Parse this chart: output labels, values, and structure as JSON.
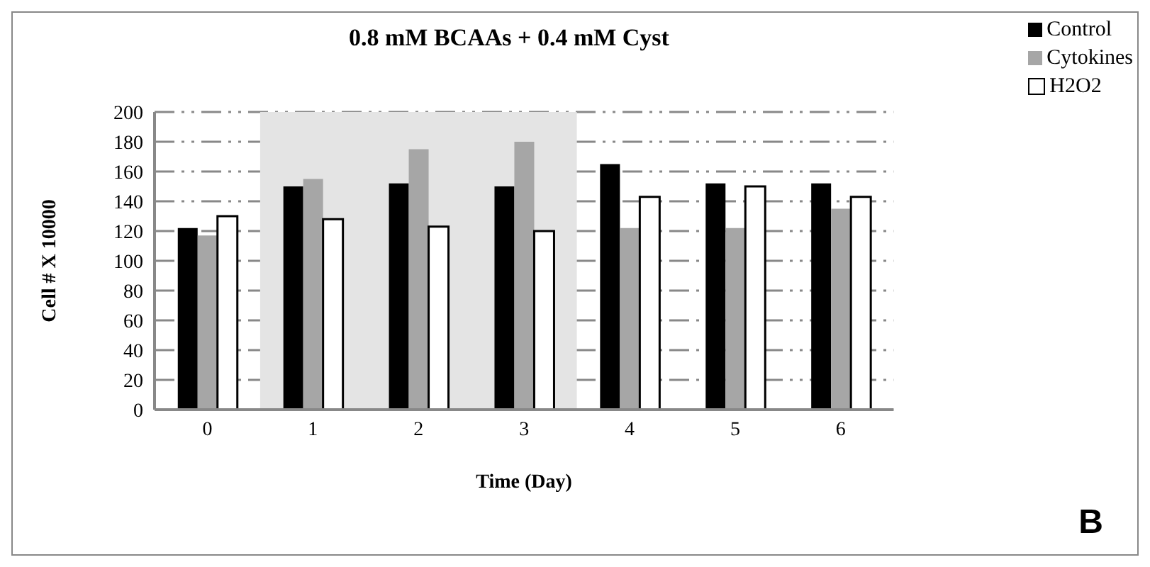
{
  "chart_data": {
    "type": "bar",
    "title": "0.8 mM BCAAs + 0.4 mM Cyst",
    "xlabel": "Time (Day)",
    "ylabel": "Cell # X 10000",
    "categories": [
      "0",
      "1",
      "2",
      "3",
      "4",
      "5",
      "6"
    ],
    "series": [
      {
        "name": "Control",
        "color": "#000000",
        "values": [
          122,
          150,
          152,
          150,
          165,
          152,
          152
        ]
      },
      {
        "name": "Cytokines",
        "color": "#a6a6a6",
        "values": [
          117,
          155,
          175,
          180,
          122,
          122,
          135
        ]
      },
      {
        "name": "H2O2",
        "color": "#ffffff",
        "values": [
          130,
          128,
          123,
          120,
          143,
          150,
          143
        ]
      }
    ],
    "ylim": [
      0,
      200
    ],
    "yticks": [
      0,
      20,
      40,
      60,
      80,
      100,
      120,
      140,
      160,
      180,
      200
    ],
    "grid": "y",
    "legend": "top right",
    "bands": [
      {
        "axis": "x",
        "from": "1",
        "to": "3",
        "color": "#e4e4e4"
      }
    ],
    "annotations": [
      "B"
    ]
  }
}
